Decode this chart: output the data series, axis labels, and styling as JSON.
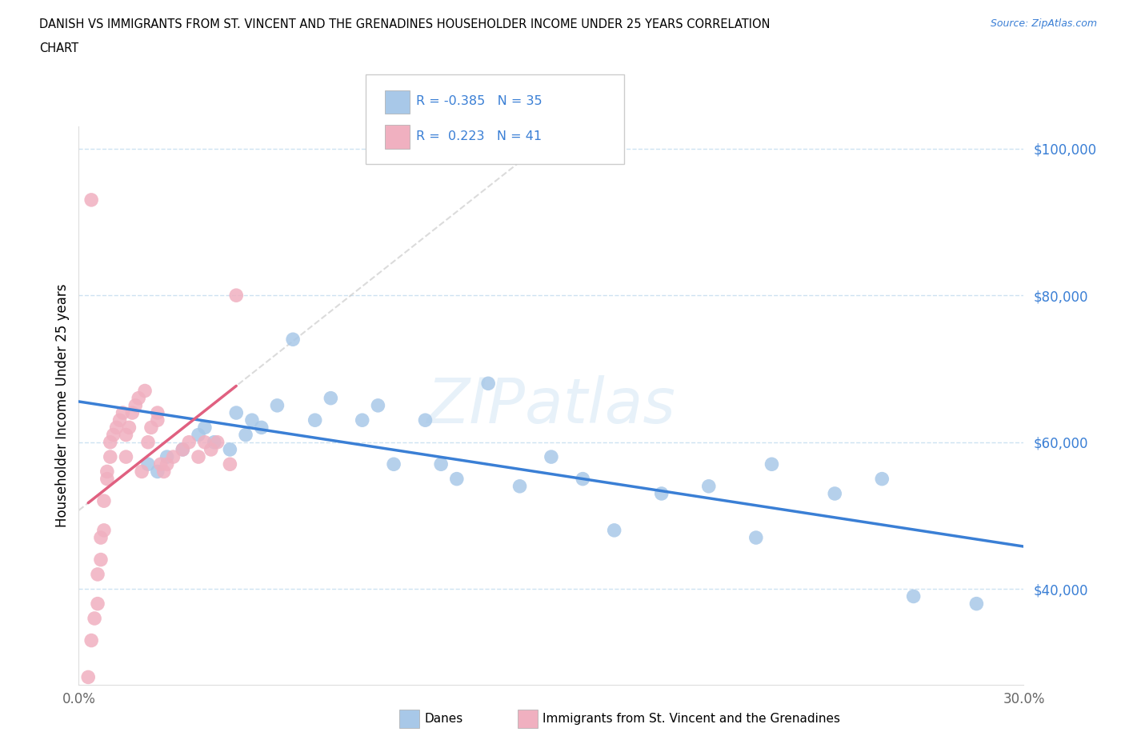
{
  "title_line1": "DANISH VS IMMIGRANTS FROM ST. VINCENT AND THE GRENADINES HOUSEHOLDER INCOME UNDER 25 YEARS CORRELATION",
  "title_line2": "CHART",
  "source": "Source: ZipAtlas.com",
  "ylabel": "Householder Income Under 25 years",
  "legend_label_blue": "Danes",
  "legend_label_pink": "Immigrants from St. Vincent and the Grenadines",
  "blue_R": -0.385,
  "blue_N": 35,
  "pink_R": 0.223,
  "pink_N": 41,
  "xlim": [
    0.0,
    0.3
  ],
  "ylim": [
    27000,
    103000
  ],
  "yticks": [
    40000,
    60000,
    80000,
    100000
  ],
  "ytick_labels": [
    "$40,000",
    "$60,000",
    "$80,000",
    "$100,000"
  ],
  "xticks": [
    0.0,
    0.05,
    0.1,
    0.15,
    0.2,
    0.25,
    0.3
  ],
  "background_color": "#ffffff",
  "blue_color": "#a8c8e8",
  "pink_color": "#f0b0c0",
  "blue_line_color": "#3a7fd5",
  "pink_line_color": "#e06080",
  "grid_color": "#c8dff0",
  "watermark": "ZIPatlas",
  "blue_scatter_x": [
    0.022,
    0.025,
    0.028,
    0.033,
    0.038,
    0.04,
    0.043,
    0.048,
    0.05,
    0.053,
    0.055,
    0.058,
    0.063,
    0.068,
    0.075,
    0.08,
    0.09,
    0.095,
    0.1,
    0.11,
    0.115,
    0.12,
    0.13,
    0.14,
    0.15,
    0.16,
    0.17,
    0.185,
    0.2,
    0.215,
    0.22,
    0.24,
    0.255,
    0.265,
    0.285
  ],
  "blue_scatter_y": [
    57000,
    56000,
    58000,
    59000,
    61000,
    62000,
    60000,
    59000,
    64000,
    61000,
    63000,
    62000,
    65000,
    74000,
    63000,
    66000,
    63000,
    65000,
    57000,
    63000,
    57000,
    55000,
    68000,
    54000,
    58000,
    55000,
    48000,
    53000,
    54000,
    47000,
    57000,
    53000,
    55000,
    39000,
    38000
  ],
  "pink_scatter_x": [
    0.003,
    0.004,
    0.005,
    0.006,
    0.006,
    0.007,
    0.007,
    0.008,
    0.008,
    0.009,
    0.009,
    0.01,
    0.01,
    0.011,
    0.012,
    0.013,
    0.014,
    0.015,
    0.015,
    0.016,
    0.017,
    0.018,
    0.019,
    0.02,
    0.021,
    0.022,
    0.023,
    0.025,
    0.025,
    0.026,
    0.027,
    0.028,
    0.03,
    0.033,
    0.035,
    0.038,
    0.04,
    0.042,
    0.044,
    0.048,
    0.05
  ],
  "pink_scatter_y": [
    28000,
    33000,
    36000,
    38000,
    42000,
    44000,
    47000,
    48000,
    52000,
    55000,
    56000,
    58000,
    60000,
    61000,
    62000,
    63000,
    64000,
    58000,
    61000,
    62000,
    64000,
    65000,
    66000,
    56000,
    67000,
    60000,
    62000,
    63000,
    64000,
    57000,
    56000,
    57000,
    58000,
    59000,
    60000,
    58000,
    60000,
    59000,
    60000,
    57000,
    80000
  ],
  "pink_outlier_x": [
    0.004
  ],
  "pink_outlier_y": [
    93000
  ]
}
